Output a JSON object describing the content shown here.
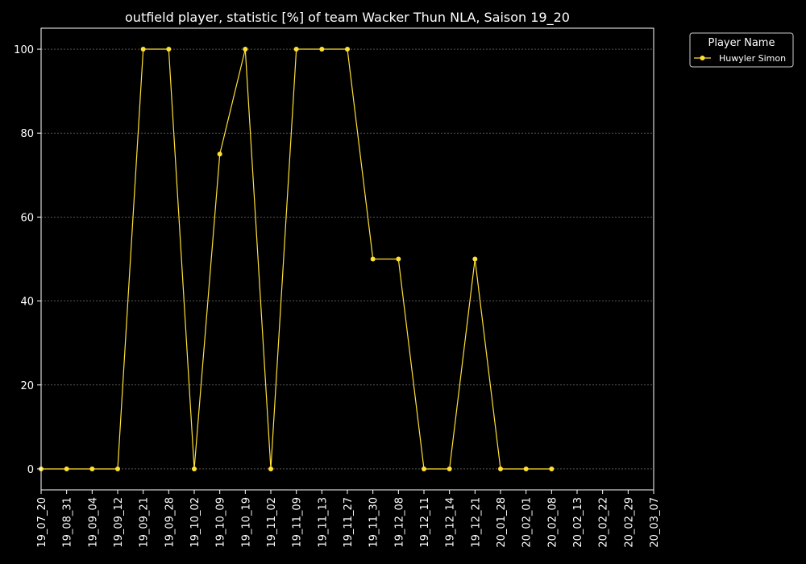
{
  "chart_data": {
    "type": "line",
    "title": "outfield player, statistic [%] of team Wacker Thun NLA, Saison 19_20",
    "xlabel": "",
    "ylabel": "",
    "ylim": [
      -5,
      105
    ],
    "yticks": [
      0,
      20,
      40,
      60,
      80,
      100
    ],
    "grid": true,
    "legend_position": "top-right, outside plot",
    "legend_title": "Player Name",
    "categories": [
      "19_07_20",
      "19_08_31",
      "19_09_04",
      "19_09_12",
      "19_09_21",
      "19_09_28",
      "19_10_02",
      "19_10_09",
      "19_10_19",
      "19_11_02",
      "19_11_09",
      "19_11_13",
      "19_11_27",
      "19_11_30",
      "19_12_08",
      "19_12_11",
      "19_12_14",
      "19_12_21",
      "20_01_28",
      "20_02_01",
      "20_02_08",
      "20_02_13",
      "20_02_22",
      "20_02_29",
      "20_03_07"
    ],
    "series": [
      {
        "name": "Huwyler Simon",
        "color": "#ffe135",
        "values": [
          0,
          0,
          0,
          0,
          100,
          100,
          0,
          75,
          100,
          0,
          100,
          100,
          100,
          50,
          50,
          0,
          0,
          50,
          0,
          0,
          0,
          null,
          null,
          null,
          null
        ]
      }
    ]
  },
  "colors": {
    "background": "#000000",
    "axes": "#ffffff",
    "grid": "#888888",
    "text": "#ffffff"
  }
}
